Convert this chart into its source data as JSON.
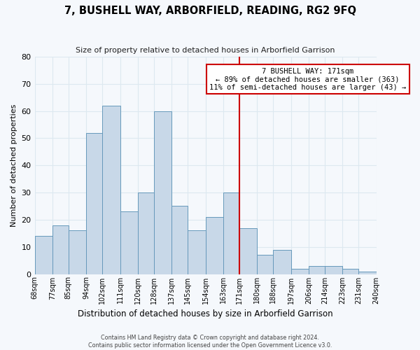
{
  "title": "7, BUSHELL WAY, ARBORFIELD, READING, RG2 9FQ",
  "subtitle": "Size of property relative to detached houses in Arborfield Garrison",
  "xlabel": "Distribution of detached houses by size in Arborfield Garrison",
  "ylabel": "Number of detached properties",
  "bin_edges": [
    68,
    77,
    85,
    94,
    102,
    111,
    120,
    128,
    137,
    145,
    154,
    163,
    171,
    180,
    188,
    197,
    206,
    214,
    223,
    231,
    240
  ],
  "bar_heights": [
    14,
    18,
    16,
    52,
    62,
    23,
    30,
    60,
    25,
    16,
    21,
    30,
    17,
    7,
    9,
    2,
    3,
    3,
    2,
    1
  ],
  "bar_color": "#c8d8e8",
  "bar_edgecolor": "#6699bb",
  "vline_x": 171,
  "vline_color": "#cc0000",
  "annotation_title": "7 BUSHELL WAY: 171sqm",
  "annotation_line1": "← 89% of detached houses are smaller (363)",
  "annotation_line2": "11% of semi-detached houses are larger (43) →",
  "annotation_box_color": "#ffffff",
  "annotation_box_edgecolor": "#cc0000",
  "ylim": [
    0,
    80
  ],
  "yticks": [
    0,
    10,
    20,
    30,
    40,
    50,
    60,
    70,
    80
  ],
  "tick_labels": [
    "68sqm",
    "77sqm",
    "85sqm",
    "94sqm",
    "102sqm",
    "111sqm",
    "120sqm",
    "128sqm",
    "137sqm",
    "145sqm",
    "154sqm",
    "163sqm",
    "171sqm",
    "180sqm",
    "188sqm",
    "197sqm",
    "206sqm",
    "214sqm",
    "223sqm",
    "231sqm",
    "240sqm"
  ],
  "footnote1": "Contains HM Land Registry data © Crown copyright and database right 2024.",
  "footnote2": "Contains public sector information licensed under the Open Government Licence v3.0.",
  "grid_color": "#dde8f0",
  "bg_color": "#f5f8fc"
}
